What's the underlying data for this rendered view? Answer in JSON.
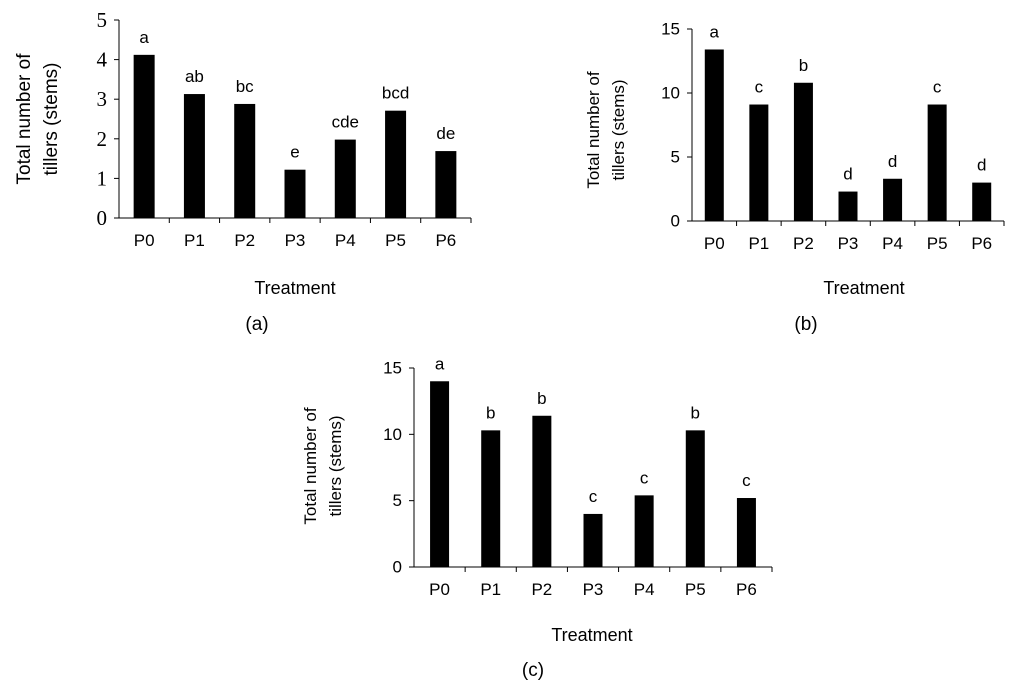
{
  "chart_data": [
    {
      "type": "bar",
      "panel_label": "(a)",
      "xlabel": "Treatment",
      "ylabel_line1": "Total number of",
      "ylabel_line2": "tillers (stems)",
      "ylim": [
        0,
        5
      ],
      "yticks": [
        "0",
        "1",
        "2",
        "3",
        "4",
        "5"
      ],
      "categories": [
        "P0",
        "P1",
        "P2",
        "P3",
        "P4",
        "P5",
        "P6"
      ],
      "values": [
        4.12,
        3.13,
        2.88,
        1.22,
        1.98,
        2.71,
        1.69
      ],
      "letters": [
        "a",
        "ab",
        "bc",
        "e",
        "cde",
        "bcd",
        "de"
      ],
      "bar_color": "#000000"
    },
    {
      "type": "bar",
      "panel_label": "(b)",
      "xlabel": "Treatment",
      "ylabel_line1": "Total number of",
      "ylabel_line2": "tillers (stems)",
      "ylim": [
        0,
        15
      ],
      "yticks": [
        "0",
        "5",
        "10",
        "15"
      ],
      "categories": [
        "P0",
        "P1",
        "P2",
        "P3",
        "P4",
        "P5",
        "P6"
      ],
      "values": [
        13.4,
        9.1,
        10.8,
        2.3,
        3.3,
        9.1,
        3.0
      ],
      "letters": [
        "a",
        "c",
        "b",
        "d",
        "d",
        "c",
        "d"
      ],
      "bar_color": "#000000"
    },
    {
      "type": "bar",
      "panel_label": "(c)",
      "xlabel": "Treatment",
      "ylabel_line1": "Total number of",
      "ylabel_line2": "tillers (stems)",
      "ylim": [
        0,
        15
      ],
      "yticks": [
        "0",
        "5",
        "10",
        "15"
      ],
      "categories": [
        "P0",
        "P1",
        "P2",
        "P3",
        "P4",
        "P5",
        "P6"
      ],
      "values": [
        14.0,
        10.3,
        11.4,
        4.0,
        5.4,
        10.3,
        5.2
      ],
      "letters": [
        "a",
        "b",
        "b",
        "c",
        "c",
        "b",
        "c"
      ],
      "bar_color": "#000000"
    }
  ]
}
